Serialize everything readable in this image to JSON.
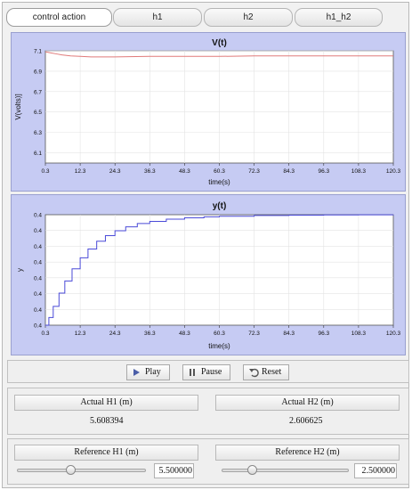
{
  "tabs": [
    {
      "label": "control action",
      "active": true
    },
    {
      "label": "h1",
      "active": false
    },
    {
      "label": "h2",
      "active": false
    },
    {
      "label": "h1_h2",
      "active": false
    }
  ],
  "colors": {
    "plot_background": "#c6cbf3",
    "plot_area": "#ffffff",
    "voltage_line": "#e07a7a",
    "y_line": "#4a4ad8"
  },
  "chart_data": [
    {
      "type": "line",
      "title": "V(t)",
      "xlabel": "time(s)",
      "ylabel": "V(volts)]",
      "x_ticks": [
        "0.3",
        "12.3",
        "24.3",
        "36.3",
        "48.3",
        "60.3",
        "72.3",
        "84.3",
        "96.3",
        "108.3",
        "120.3"
      ],
      "y_ticks": [
        "7.1",
        "6.9",
        "6.7",
        "6.5",
        "6.3",
        "6.1"
      ],
      "xlim": [
        0.3,
        120.3
      ],
      "ylim": [
        6.0,
        7.1
      ],
      "grid": true,
      "series": [
        {
          "color": "#e07a7a",
          "x": [
            0.3,
            2,
            4,
            6,
            9,
            12.3,
            16,
            20,
            24.3,
            36.3,
            48.3,
            60.3,
            72.3,
            84.3,
            96.3,
            108.3,
            120.3
          ],
          "y": [
            7.09,
            7.08,
            7.07,
            7.06,
            7.05,
            7.045,
            7.04,
            7.04,
            7.04,
            7.045,
            7.045,
            7.045,
            7.05,
            7.05,
            7.05,
            7.05,
            7.05
          ]
        }
      ]
    },
    {
      "type": "line",
      "title": "y(t)",
      "xlabel": "time(s)",
      "ylabel": "y",
      "x_ticks": [
        "0.3",
        "12.3",
        "24.3",
        "36.3",
        "48.3",
        "60.3",
        "72.3",
        "84.3",
        "96.3",
        "108.3",
        "120.3"
      ],
      "y_ticks": [
        "0.4",
        "0.4",
        "0.4",
        "0.4",
        "0.4",
        "0.4",
        "0.4",
        "0.4"
      ],
      "xlim": [
        0.3,
        120.3
      ],
      "grid": true,
      "series": [
        {
          "color": "#4a4ad8",
          "x": [
            0.3,
            1.5,
            3,
            5,
            7,
            9.5,
            12.3,
            15,
            18,
            21,
            24.3,
            28,
            32,
            36.3,
            42,
            48.3,
            55,
            60.3,
            72.3,
            84.3,
            96.3,
            108.3,
            120.3
          ],
          "y": [
            0.0,
            0.07,
            0.17,
            0.29,
            0.4,
            0.51,
            0.61,
            0.69,
            0.76,
            0.81,
            0.855,
            0.89,
            0.92,
            0.94,
            0.96,
            0.972,
            0.981,
            0.986,
            0.993,
            0.996,
            0.998,
            0.999,
            1.0
          ]
        }
      ]
    }
  ],
  "controls": {
    "play": "Play",
    "pause": "Pause",
    "reset": "Reset"
  },
  "actual": {
    "h1_label": "Actual H1 (m)",
    "h1_value": "5.608394",
    "h2_label": "Actual H2 (m)",
    "h2_value": "2.606625"
  },
  "reference": {
    "h1_label": "Reference H1 (m)",
    "h1_value": "5.500000",
    "h1_slider_fraction": 0.42,
    "h2_label": "Reference H2 (m)",
    "h2_value": "2.500000",
    "h2_slider_fraction": 0.24
  }
}
